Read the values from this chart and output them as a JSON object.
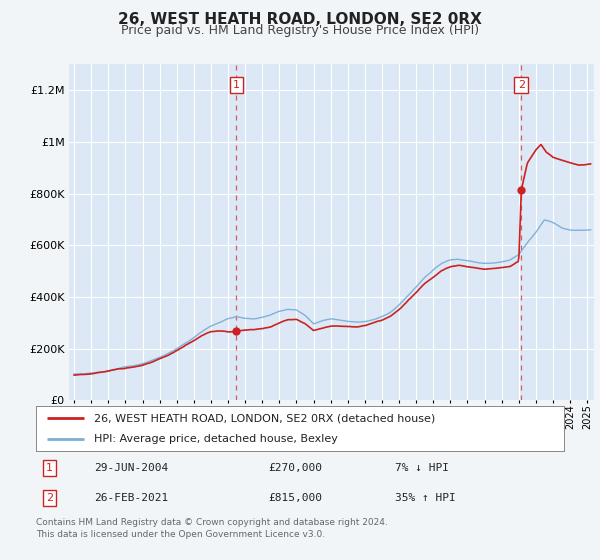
{
  "title": "26, WEST HEATH ROAD, LONDON, SE2 0RX",
  "subtitle": "Price paid vs. HM Land Registry's House Price Index (HPI)",
  "ylim": [
    0,
    1300000
  ],
  "xlim_start": 1994.7,
  "xlim_end": 2025.4,
  "background_color": "#f2f5f8",
  "plot_bg_color": "#dce8f5",
  "grid_color": "#ffffff",
  "hpi_color": "#7bafd4",
  "price_color": "#cc2222",
  "sale1_x": 2004.49,
  "sale1_y": 270000,
  "sale2_x": 2021.15,
  "sale2_y": 815000,
  "legend_line1": "26, WEST HEATH ROAD, LONDON, SE2 0RX (detached house)",
  "legend_line2": "HPI: Average price, detached house, Bexley",
  "annotation1_label": "1",
  "annotation1_date": "29-JUN-2004",
  "annotation1_price": "£270,000",
  "annotation1_hpi": "7% ↓ HPI",
  "annotation2_label": "2",
  "annotation2_date": "26-FEB-2021",
  "annotation2_price": "£815,000",
  "annotation2_hpi": "35% ↑ HPI",
  "footer": "Contains HM Land Registry data © Crown copyright and database right 2024.\nThis data is licensed under the Open Government Licence v3.0.",
  "title_fontsize": 11,
  "subtitle_fontsize": 9
}
